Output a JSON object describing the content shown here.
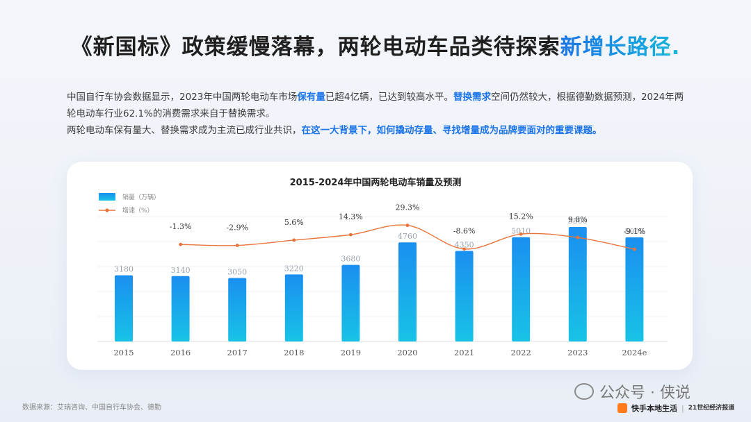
{
  "header": {
    "title_main": "《新国标》政策缓慢落幕，两轮电动车品类待探索",
    "title_accent": "新增长路径."
  },
  "paragraph1": {
    "t1": "中国自行车协会数据显示，2023年中国两轮电动车市场",
    "h1": "保有量",
    "t2": "已超4亿辆，已达到较高水平。",
    "h2": "替换需求",
    "t3": "空间仍然较大，根据德勤数据预测，2024年两轮电动车行业62.1%的消费需求来自于替换需求。"
  },
  "paragraph2": {
    "t1": "两轮电动车保有量大、替换需求成为主流已成行业共识，",
    "h1": "在这一大背景下，如何撬动存量、寻找增量成为品牌要面对的重要课题。"
  },
  "chart_data": {
    "type": "bar",
    "title": "2015-2024年中国两轮电动车销量及预测",
    "categories": [
      "2015",
      "2016",
      "2017",
      "2018",
      "2019",
      "2020",
      "2021",
      "2022",
      "2023",
      "2024e"
    ],
    "series": [
      {
        "name": "销量（万辆）",
        "type": "bar",
        "values": [
          3180,
          3140,
          3050,
          3220,
          3680,
          4760,
          4350,
          5010,
          5500,
          5000
        ]
      },
      {
        "name": "增速（%）",
        "type": "line",
        "values": [
          null,
          -1.3,
          -2.9,
          5.6,
          14.3,
          29.3,
          -8.6,
          15.2,
          9.8,
          -9.1
        ],
        "labels": [
          "",
          "-1.3%",
          "-2.9%",
          "5.6%",
          "14.3%",
          "29.3%",
          "-8.6%",
          "15.2%",
          "9.8%",
          "-9.1%"
        ]
      }
    ],
    "bar_ylim": [
      0,
      6000
    ],
    "line_ylim": [
      -60,
      40
    ],
    "legend_position": "top-left",
    "colors": {
      "bar_top": "#1a8ff0",
      "bar_bottom": "#18c3e6",
      "line": "#e8743b"
    }
  },
  "footer": {
    "source": "数据来源：艾瑞咨询、中国自行车协会、德勤",
    "watermark": "公众号 · 侠说",
    "brand1": "快手本地生活",
    "separator": "|",
    "brand2": "21世纪经济报道"
  }
}
